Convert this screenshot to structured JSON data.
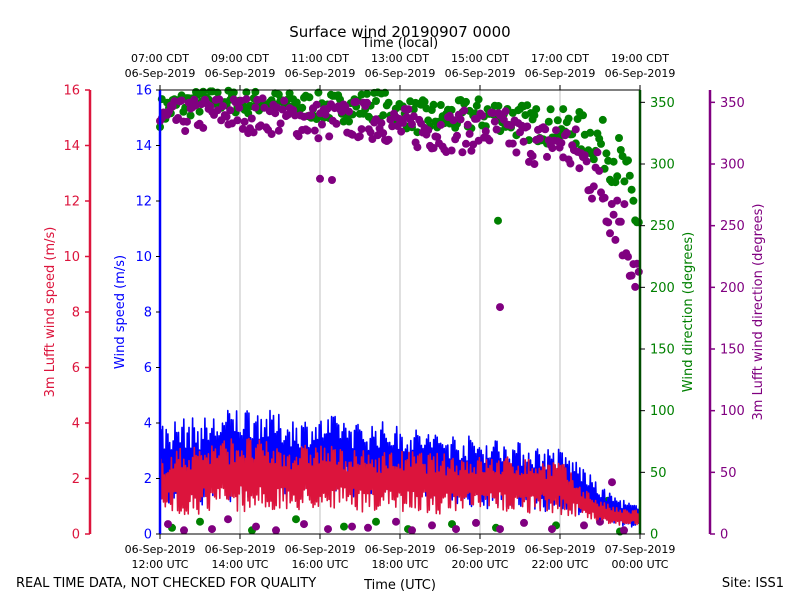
{
  "chart_data": {
    "type": "line+scatter",
    "title": "Surface wind 20190907 0000",
    "top_axis_label": "Time (local)",
    "xlabel": "Time (UTC)",
    "footer_left": "REAL TIME DATA, NOT CHECKED FOR QUALITY",
    "footer_right": "Site: ISS1",
    "x_range_hours_utc": [
      12,
      24
    ],
    "bottom_ticks": [
      {
        "hour": 12,
        "line1": "06-Sep-2019",
        "line2": "12:00 UTC"
      },
      {
        "hour": 14,
        "line1": "06-Sep-2019",
        "line2": "14:00 UTC"
      },
      {
        "hour": 16,
        "line1": "06-Sep-2019",
        "line2": "16:00 UTC"
      },
      {
        "hour": 18,
        "line1": "06-Sep-2019",
        "line2": "18:00 UTC"
      },
      {
        "hour": 20,
        "line1": "06-Sep-2019",
        "line2": "20:00 UTC"
      },
      {
        "hour": 22,
        "line1": "06-Sep-2019",
        "line2": "22:00 UTC"
      },
      {
        "hour": 24,
        "line1": "07-Sep-2019",
        "line2": "00:00 UTC"
      }
    ],
    "top_ticks": [
      {
        "hour": 12,
        "line1": "07:00 CDT",
        "line2": "06-Sep-2019"
      },
      {
        "hour": 14,
        "line1": "09:00 CDT",
        "line2": "06-Sep-2019"
      },
      {
        "hour": 16,
        "line1": "11:00 CDT",
        "line2": "06-Sep-2019"
      },
      {
        "hour": 18,
        "line1": "13:00 CDT",
        "line2": "06-Sep-2019"
      },
      {
        "hour": 20,
        "line1": "15:00 CDT",
        "line2": "06-Sep-2019"
      },
      {
        "hour": 22,
        "line1": "17:00 CDT",
        "line2": "06-Sep-2019"
      },
      {
        "hour": 24,
        "line1": "19:00 CDT",
        "line2": "06-Sep-2019"
      }
    ],
    "axes": {
      "lufft_speed": {
        "label": "3m Lufft wind speed (m/s)",
        "range": [
          0,
          16
        ],
        "ticks": [
          0,
          2,
          4,
          6,
          8,
          10,
          12,
          14,
          16
        ],
        "color": "#dc143c"
      },
      "wind_speed": {
        "label": "Wind speed (m/s)",
        "range": [
          0,
          16
        ],
        "ticks": [
          0,
          2,
          4,
          6,
          8,
          10,
          12,
          14,
          16
        ],
        "color": "#0000ff"
      },
      "wind_dir": {
        "label": "Wind direction (degrees)",
        "range": [
          0,
          360
        ],
        "ticks": [
          0,
          50,
          100,
          150,
          200,
          250,
          300,
          350
        ],
        "color": "#008000"
      },
      "lufft_dir": {
        "label": "3m Lufft wind direction (degrees)",
        "range": [
          0,
          360
        ],
        "ticks": [
          0,
          50,
          100,
          150,
          200,
          250,
          300,
          350
        ],
        "color": "#800080"
      }
    },
    "series": [
      {
        "name": "Wind speed (m/s)",
        "axis": "wind_speed",
        "kind": "line",
        "color": "#0000ff",
        "hours": [
          12.0,
          12.5,
          13.0,
          13.5,
          14.0,
          14.5,
          15.0,
          15.5,
          16.0,
          16.5,
          17.0,
          17.5,
          18.0,
          18.5,
          19.0,
          19.5,
          20.0,
          20.5,
          21.0,
          21.5,
          22.0,
          22.5,
          23.0,
          23.5,
          24.0
        ],
        "mean": [
          2.5,
          2.7,
          2.6,
          2.8,
          2.9,
          3.0,
          2.8,
          2.7,
          2.8,
          2.9,
          2.6,
          2.7,
          2.6,
          2.5,
          2.4,
          2.3,
          2.2,
          2.2,
          2.1,
          2.0,
          1.9,
          1.6,
          1.1,
          0.8,
          0.6
        ],
        "amplitude": [
          1.5,
          1.5,
          1.6,
          1.6,
          1.8,
          1.6,
          1.5,
          1.5,
          1.4,
          1.4,
          1.4,
          1.4,
          1.3,
          1.3,
          1.3,
          1.3,
          1.3,
          1.3,
          1.2,
          1.2,
          1.2,
          1.0,
          0.6,
          0.5,
          0.4
        ]
      },
      {
        "name": "3m Lufft wind speed (m/s)",
        "axis": "lufft_speed",
        "kind": "line",
        "color": "#dc143c",
        "hours": [
          12.0,
          12.5,
          13.0,
          13.5,
          14.0,
          14.5,
          15.0,
          15.5,
          16.0,
          16.5,
          17.0,
          17.5,
          18.0,
          18.5,
          19.0,
          19.5,
          20.0,
          20.5,
          21.0,
          21.5,
          22.0,
          22.5,
          23.0,
          23.5,
          24.0
        ],
        "mean": [
          1.8,
          1.9,
          2.0,
          2.1,
          2.2,
          2.1,
          2.0,
          2.0,
          2.1,
          2.0,
          1.9,
          1.9,
          1.9,
          1.9,
          1.8,
          1.8,
          1.8,
          1.8,
          1.8,
          1.7,
          1.7,
          1.2,
          0.8,
          0.6,
          0.6
        ],
        "amplitude": [
          1.1,
          1.2,
          1.3,
          1.3,
          1.4,
          1.3,
          1.2,
          1.2,
          1.2,
          1.1,
          1.1,
          1.1,
          1.1,
          1.1,
          1.1,
          1.1,
          1.0,
          1.0,
          1.0,
          1.0,
          1.0,
          0.6,
          0.4,
          0.3,
          0.3
        ]
      },
      {
        "name": "Wind direction (degrees)",
        "axis": "wind_dir",
        "kind": "scatter",
        "color": "#008000",
        "hours": [
          12.0,
          12.5,
          13.0,
          13.5,
          14.0,
          14.5,
          15.0,
          15.5,
          16.0,
          16.5,
          17.0,
          17.5,
          18.0,
          18.5,
          19.0,
          19.5,
          20.0,
          20.5,
          21.0,
          21.5,
          22.0,
          22.5,
          23.0,
          23.5,
          24.0
        ],
        "mean": [
          342,
          348,
          350,
          352,
          350,
          350,
          349,
          348,
          346,
          346,
          347,
          348,
          342,
          338,
          337,
          338,
          340,
          340,
          335,
          332,
          330,
          325,
          318,
          300,
          250
        ],
        "spread": [
          12,
          12,
          10,
          9,
          10,
          10,
          10,
          10,
          12,
          12,
          12,
          12,
          12,
          14,
          14,
          14,
          14,
          14,
          15,
          15,
          15,
          18,
          20,
          24,
          26
        ],
        "low_outliers": [
          [
            12.3,
            5
          ],
          [
            13.0,
            10
          ],
          [
            14.3,
            3
          ],
          [
            15.4,
            12
          ],
          [
            16.6,
            6
          ],
          [
            17.4,
            10
          ],
          [
            18.2,
            4
          ],
          [
            19.3,
            8
          ],
          [
            20.4,
            5
          ],
          [
            21.9,
            7
          ],
          [
            23.2,
            27
          ],
          [
            23.5,
            2
          ]
        ],
        "high_outliers": [
          [
            20.45,
            254
          ]
        ]
      },
      {
        "name": "3m Lufft wind direction (degrees)",
        "axis": "lufft_dir",
        "kind": "scatter",
        "color": "#800080",
        "hours": [
          12.0,
          12.5,
          13.0,
          13.5,
          14.0,
          14.5,
          15.0,
          15.5,
          16.0,
          16.5,
          17.0,
          17.5,
          18.0,
          18.5,
          19.0,
          19.5,
          20.0,
          20.5,
          21.0,
          21.5,
          22.0,
          22.5,
          23.0,
          23.5,
          24.0
        ],
        "mean": [
          335,
          338,
          340,
          342,
          340,
          340,
          338,
          336,
          335,
          335,
          336,
          334,
          330,
          328,
          327,
          326,
          328,
          328,
          320,
          316,
          318,
          305,
          285,
          258,
          205
        ],
        "spread": [
          14,
          14,
          14,
          14,
          15,
          15,
          15,
          15,
          16,
          16,
          16,
          15,
          16,
          17,
          17,
          17,
          18,
          18,
          18,
          18,
          20,
          24,
          30,
          32,
          28
        ],
        "low_outliers": [
          [
            12.2,
            8
          ],
          [
            12.6,
            3
          ],
          [
            13.3,
            4
          ],
          [
            13.7,
            12
          ],
          [
            14.4,
            6
          ],
          [
            14.9,
            3
          ],
          [
            15.6,
            8
          ],
          [
            16.2,
            4
          ],
          [
            16.8,
            6
          ],
          [
            17.2,
            5
          ],
          [
            17.9,
            10
          ],
          [
            18.3,
            3
          ],
          [
            18.8,
            7
          ],
          [
            19.4,
            4
          ],
          [
            19.9,
            9
          ],
          [
            20.5,
            4
          ],
          [
            21.1,
            9
          ],
          [
            21.8,
            4
          ],
          [
            22.6,
            7
          ],
          [
            23.0,
            10
          ],
          [
            23.3,
            42
          ],
          [
            23.6,
            3
          ]
        ],
        "high_outliers": [
          [
            16.0,
            288
          ],
          [
            16.3,
            287
          ],
          [
            20.5,
            184
          ]
        ]
      }
    ]
  }
}
